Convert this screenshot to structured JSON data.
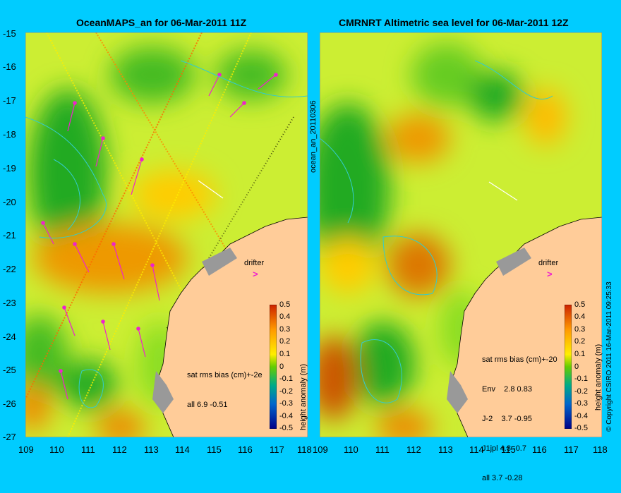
{
  "panels": [
    {
      "title": "OceanMAPS_an for 06-Mar-2011 11Z",
      "stats": [
        "sat rms bias (cm)+-2e",
        "all 6.9 -0.51"
      ]
    },
    {
      "title": "CMRNRT Altimetric sea level  for 06-Mar-2011 12Z",
      "stats": [
        "sat rms bias (cm)+-20",
        "Env    2.8 0.83",
        "J-2    3.7 -0.95",
        "J1jpl 4.3 -0.7",
        "all 3.7 -0.28"
      ]
    }
  ],
  "lat_ticks": [
    "-15",
    "-16",
    "-17",
    "-18",
    "-19",
    "-20",
    "-21",
    "-22",
    "-23",
    "-24",
    "-25",
    "-26",
    "-27"
  ],
  "lon_ticks": [
    "109",
    "110",
    "111",
    "112",
    "113",
    "114",
    "115",
    "116",
    "117",
    "118"
  ],
  "colorbar": {
    "ticks": [
      "0.5",
      "0.4",
      "0.3",
      "0.2",
      "0.1",
      "0",
      "-0.1",
      "-0.2",
      "-0.3",
      "-0.4",
      "-0.5"
    ],
    "label": "height anomaly (m)"
  },
  "drifter_label": "drifter",
  "side_label": "ocean_an_20110306",
  "copyright": "© Copyright CSIRO 2011  16-Mar-2011 09:25:33",
  "colors": {
    "background": "#00ccff",
    "land": "#ffcc99",
    "coast": "#999999"
  }
}
